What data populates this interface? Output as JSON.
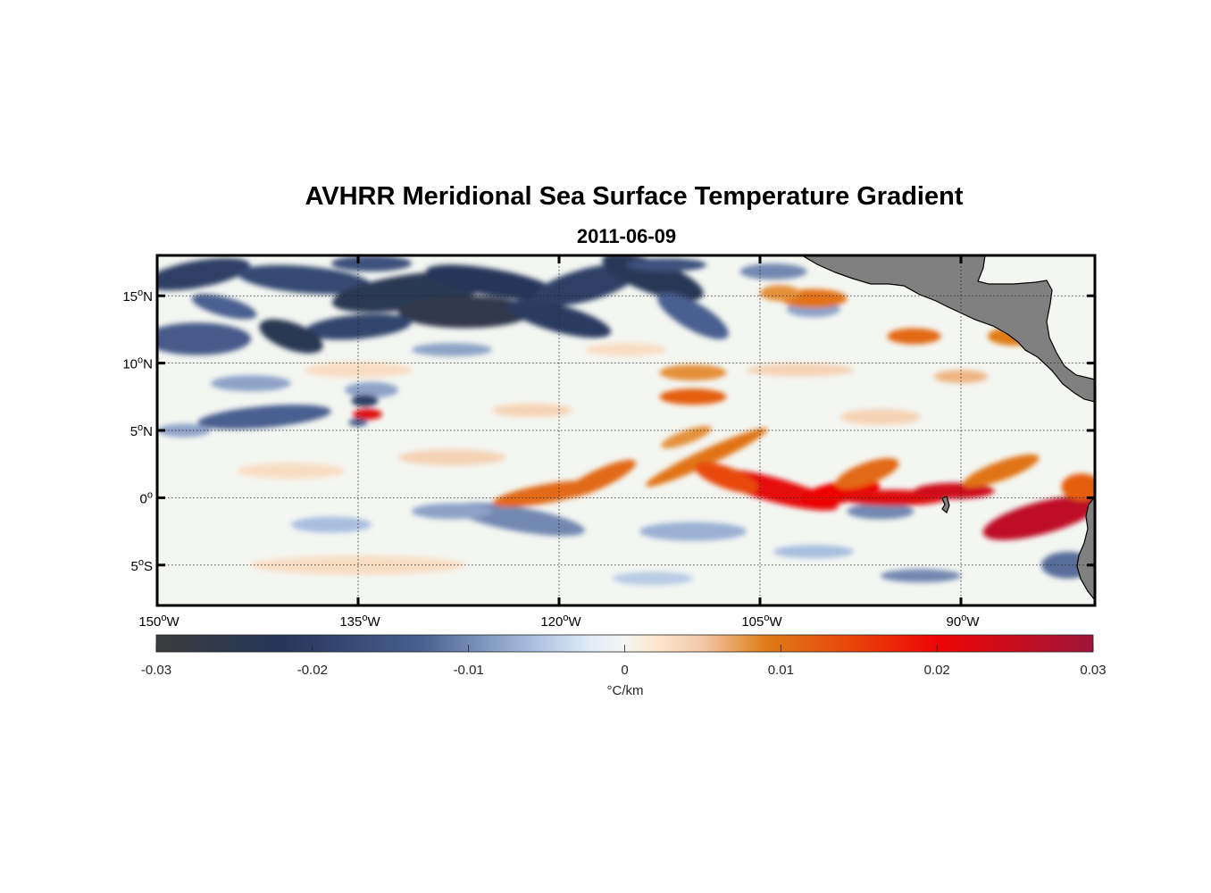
{
  "header": {
    "title": "AVHRR Meridional Sea Surface Temperature Gradient",
    "date": "2011-06-09"
  },
  "map": {
    "lon_range": [
      -150,
      -80
    ],
    "lat_range": [
      -8,
      18
    ],
    "lon_ticks": [
      {
        "value": -150,
        "label": "150",
        "suffix": "W"
      },
      {
        "value": -135,
        "label": "135",
        "suffix": "W"
      },
      {
        "value": -120,
        "label": "120",
        "suffix": "W"
      },
      {
        "value": -105,
        "label": "105",
        "suffix": "W"
      },
      {
        "value": -90,
        "label": "90",
        "suffix": "W"
      }
    ],
    "lat_ticks": [
      {
        "value": 15,
        "label": "15",
        "suffix": "N"
      },
      {
        "value": 10,
        "label": "10",
        "suffix": "N"
      },
      {
        "value": 5,
        "label": "5",
        "suffix": "N"
      },
      {
        "value": 0,
        "label": "0",
        "suffix": ""
      },
      {
        "value": -5,
        "label": "5",
        "suffix": "S"
      }
    ],
    "degree_symbol": "o",
    "grid": "dotted",
    "land_color": "#808080"
  },
  "colorbar": {
    "range": [
      -0.03,
      0.03
    ],
    "ticks": [
      {
        "value": -0.03,
        "label": "-0.03"
      },
      {
        "value": -0.02,
        "label": "-0.02"
      },
      {
        "value": -0.01,
        "label": "-0.01"
      },
      {
        "value": 0,
        "label": "0"
      },
      {
        "value": 0.01,
        "label": "0.01"
      },
      {
        "value": 0.02,
        "label": "0.02"
      },
      {
        "value": 0.03,
        "label": "0.03"
      }
    ],
    "unit": "°C/km",
    "colormap": [
      {
        "v": -0.03,
        "c": "#3b3b3b"
      },
      {
        "v": -0.022,
        "c": "#25365a"
      },
      {
        "v": -0.013,
        "c": "#4a5f8f"
      },
      {
        "v": -0.006,
        "c": "#a9bedf"
      },
      {
        "v": -0.002,
        "c": "#e4eef6"
      },
      {
        "v": 0.0,
        "c": "#f4f6f3"
      },
      {
        "v": 0.002,
        "c": "#fde8cf"
      },
      {
        "v": 0.005,
        "c": "#f1c8a8"
      },
      {
        "v": 0.009,
        "c": "#df7d17"
      },
      {
        "v": 0.015,
        "c": "#e8400a"
      },
      {
        "v": 0.02,
        "c": "#ee0505"
      },
      {
        "v": 0.03,
        "c": "#9f153a"
      }
    ]
  }
}
